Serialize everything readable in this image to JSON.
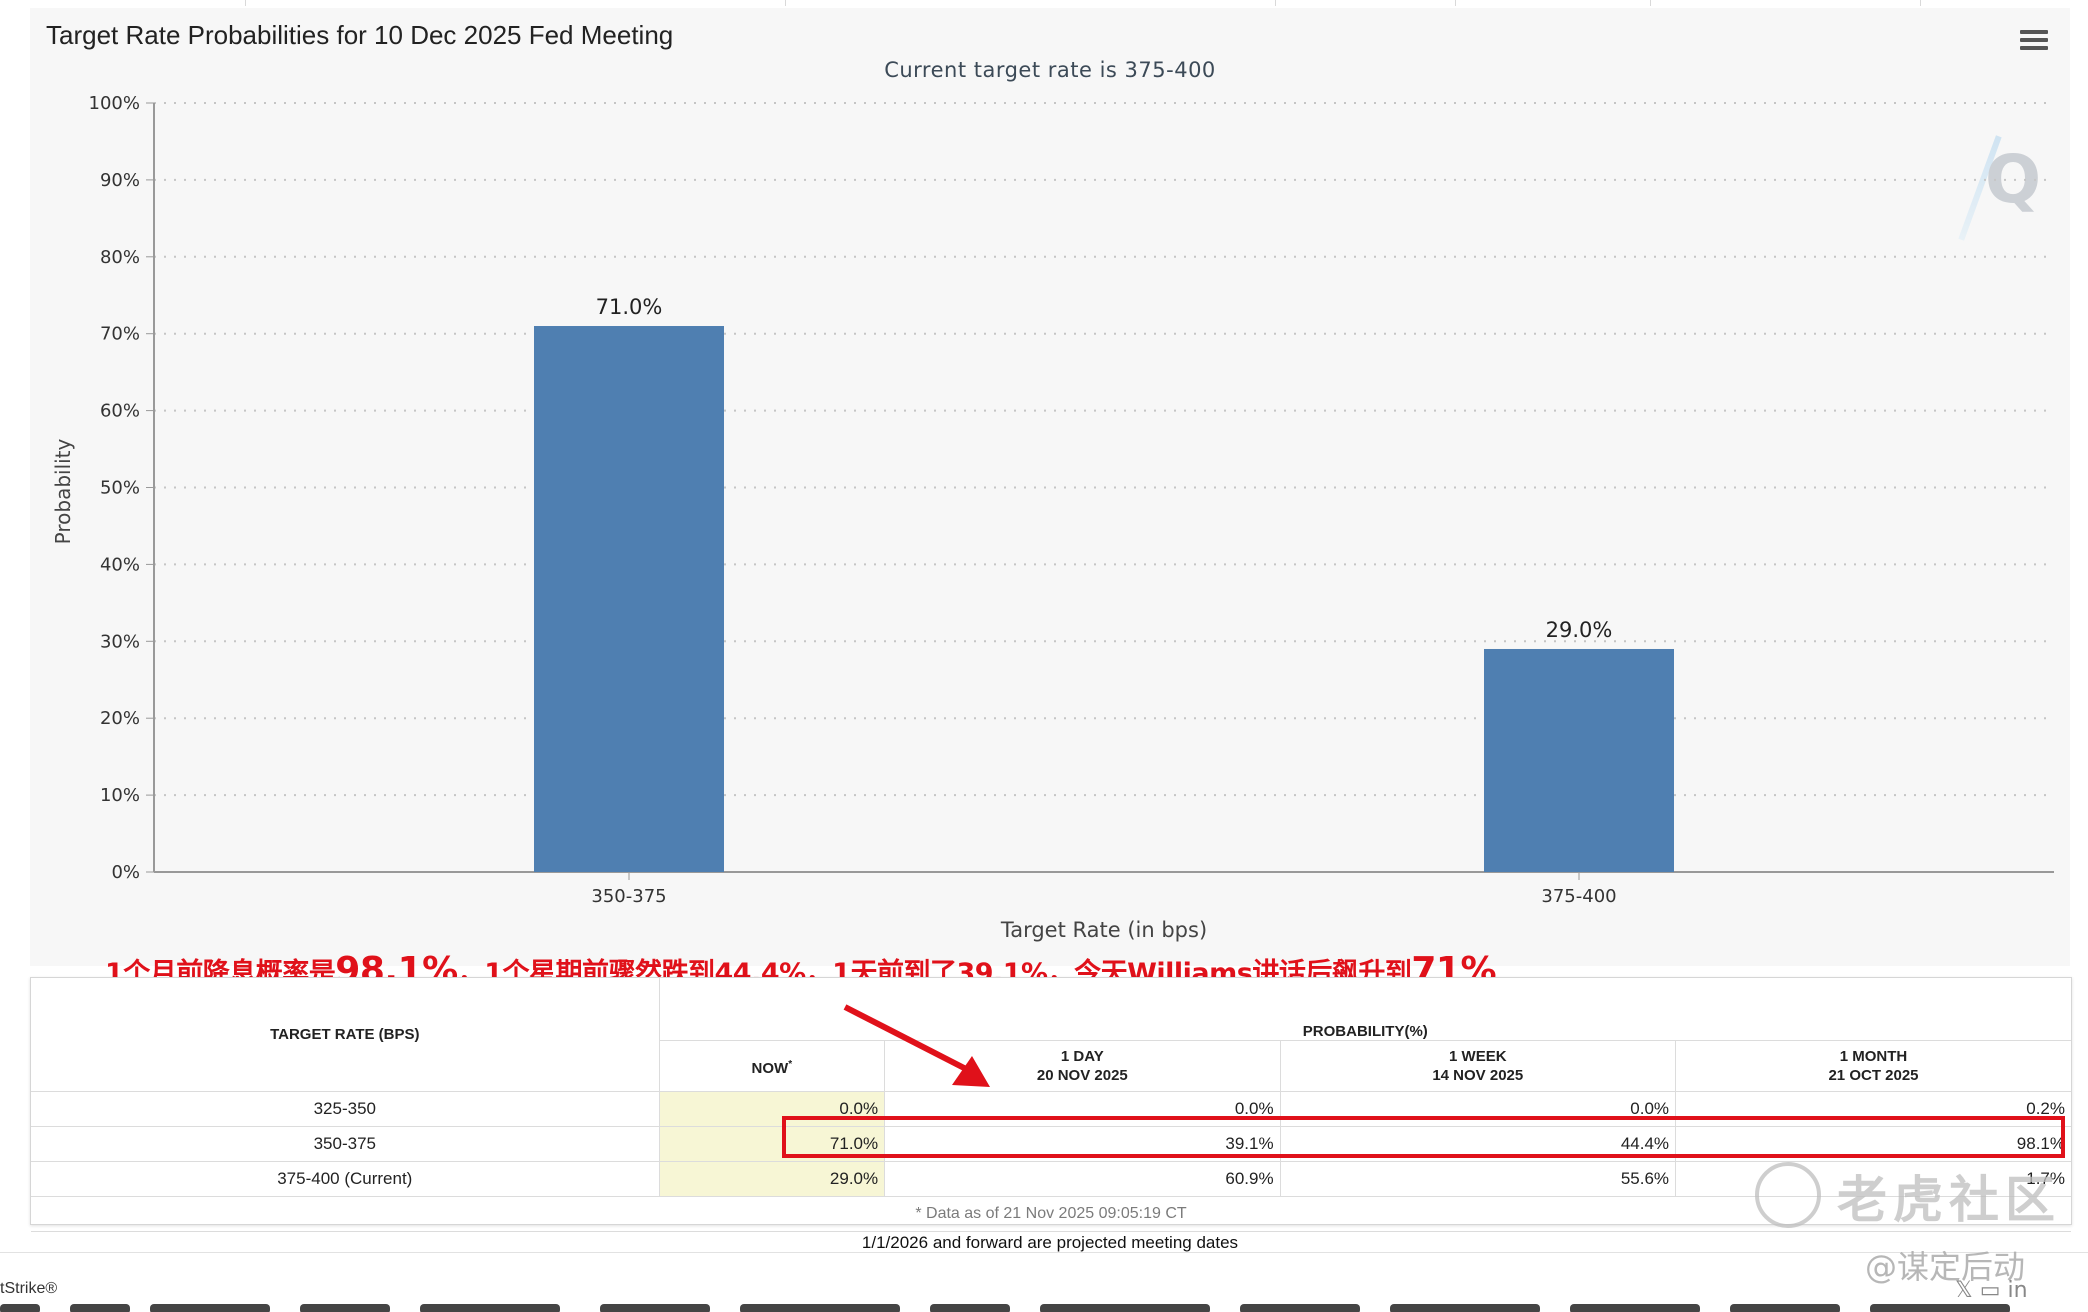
{
  "chart_data": {
    "type": "bar",
    "title": "Target Rate Probabilities for 10 Dec 2025 Fed Meeting",
    "subtitle": "Current target rate is 375-400",
    "categories": [
      "350-375",
      "375-400"
    ],
    "values": [
      71.0,
      29.0
    ],
    "value_labels": [
      "71.0%",
      "29.0%"
    ],
    "xlabel": "Target Rate (in bps)",
    "ylabel": "Probability",
    "ylim": [
      0,
      100
    ],
    "yticks": [
      "0%",
      "10%",
      "20%",
      "30%",
      "40%",
      "50%",
      "60%",
      "70%",
      "80%",
      "90%",
      "100%"
    ],
    "grid": true,
    "bar_color": "#4f7fb1"
  },
  "annotation": {
    "parts": [
      {
        "text": "1个月前降息概率是",
        "big": false
      },
      {
        "text": "98.1%",
        "big": true
      },
      {
        "text": "，1个星期前骤然跌到44.4%，1天前到了39.1%，今天Williams讲话后飙升到",
        "big": false
      },
      {
        "text": "71%",
        "big": true
      }
    ],
    "color": "#e0111a"
  },
  "table": {
    "rate_header": "TARGET RATE (BPS)",
    "prob_header": "PROBABILITY(%)",
    "columns": [
      {
        "label": "NOW",
        "sup": "*",
        "date": ""
      },
      {
        "label": "1 DAY",
        "date": "20 NOV 2025"
      },
      {
        "label": "1 WEEK",
        "date": "14 NOV 2025"
      },
      {
        "label": "1 MONTH",
        "date": "21 OCT 2025"
      }
    ],
    "rows": [
      {
        "rate": "325-350",
        "values": [
          "0.0%",
          "0.0%",
          "0.0%",
          "0.2%"
        ]
      },
      {
        "rate": "350-375",
        "values": [
          "71.0%",
          "39.1%",
          "44.4%",
          "98.1%"
        ]
      },
      {
        "rate": "375-400 (Current)",
        "values": [
          "29.0%",
          "60.9%",
          "55.6%",
          "1.7%"
        ]
      }
    ],
    "footnote": "* Data as of 21 Nov 2025 09:05:19 CT"
  },
  "projected_note": "1/1/2026 and forward are projected meeting dates",
  "cut_text": "tStrike®",
  "watermark": {
    "brand": "老虎社区",
    "author": "@谋定后动"
  }
}
